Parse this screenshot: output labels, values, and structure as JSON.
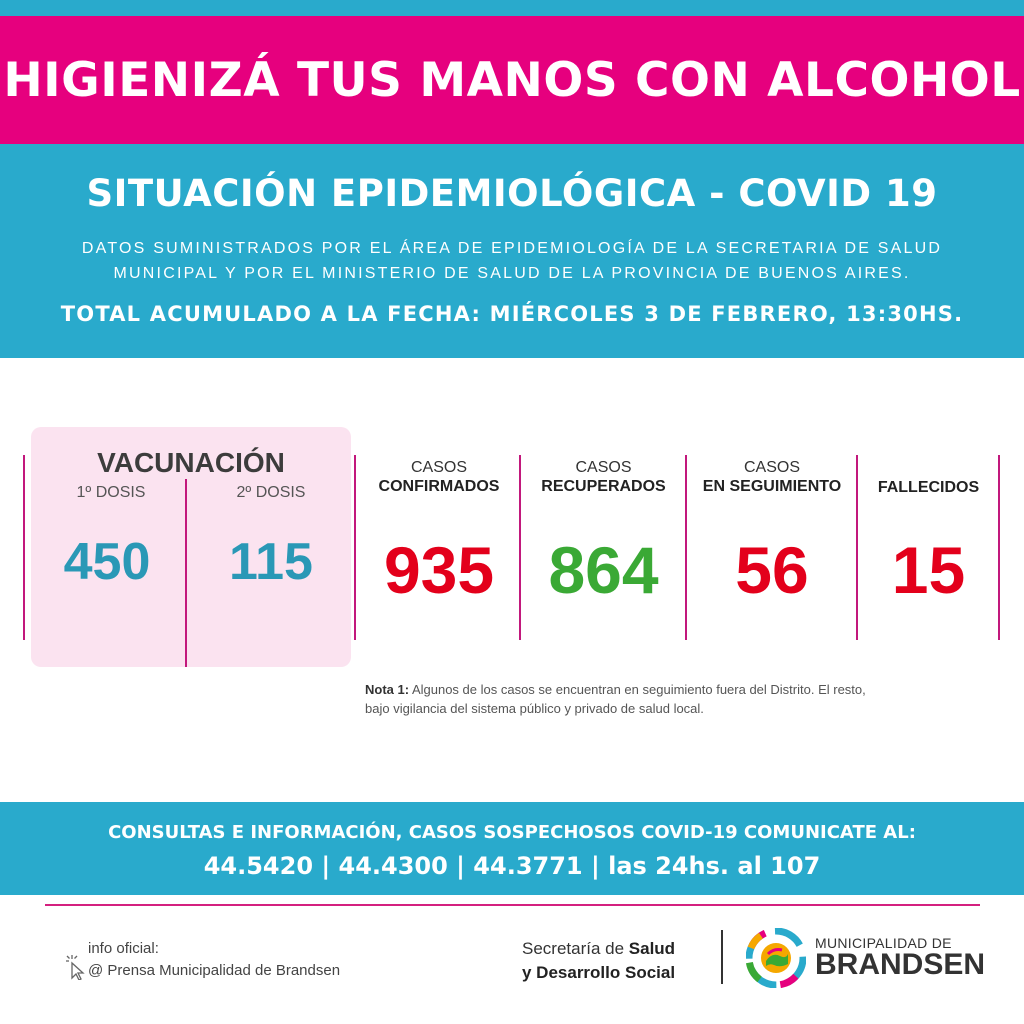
{
  "banner": {
    "text": "HIGIENIZÁ TUS MANOS CON ALCOHOL"
  },
  "header": {
    "title": "SITUACIÓN EPIDEMIOLÓGICA - COVID 19",
    "source_line1": "DATOS SUMINISTRADOS POR EL ÁREA DE EPIDEMIOLOGÍA DE LA SECRETARIA DE SALUD",
    "source_line2": "MUNICIPAL Y POR EL MINISTERIO DE SALUD DE LA PROVINCIA DE BUENOS AIRES.",
    "date_line": "TOTAL ACUMULADO A LA FECHA: MIÉRCOLES 3 DE FEBRERO, 13:30HS."
  },
  "vaccination": {
    "title": "VACUNACIÓN",
    "dose1_label": "1º DOSIS",
    "dose1_value": "450",
    "dose2_label": "2º DOSIS",
    "dose2_value": "115"
  },
  "stats": {
    "confirmed": {
      "line1": "CASOS",
      "line2": "CONFIRMADOS",
      "value": "935",
      "color": "#e3001b"
    },
    "recovered": {
      "line1": "CASOS",
      "line2": "RECUPERADOS",
      "value": "864",
      "color": "#3aa935"
    },
    "monitoring": {
      "line1": "CASOS",
      "line2": "EN SEGUIMIENTO",
      "value": "56",
      "color": "#e3001b"
    },
    "deceased": {
      "line2": "FALLECIDOS",
      "value": "15",
      "color": "#e3001b"
    }
  },
  "note": {
    "label": "Nota 1:",
    "text_line1": " Algunos de los casos se encuentran en seguimiento fuera del Distrito. El resto,",
    "text_line2": "bajo vigilancia del sistema público y privado de salud local."
  },
  "contact": {
    "line1": "CONSULTAS E INFORMACIÓN, CASOS SOSPECHOSOS COVID-19 COMUNICATE AL:",
    "line2": "44.5420 | 44.4300 | 44.3771 | las 24hs. al 107"
  },
  "footer": {
    "info_label": "info oficial:",
    "info_name": "@ Prensa Municipalidad de Brandsen",
    "secretaria_prefix": "Secretaría de ",
    "secretaria_bold1": "Salud",
    "secretaria_bold2": "y Desarrollo Social",
    "muni_line1": "MUNICIPALIDAD DE",
    "muni_line2": "BRANDSEN"
  },
  "colors": {
    "pink": "#e6007e",
    "blue": "#29aacc",
    "red": "#e3001b",
    "green": "#3aa935"
  }
}
